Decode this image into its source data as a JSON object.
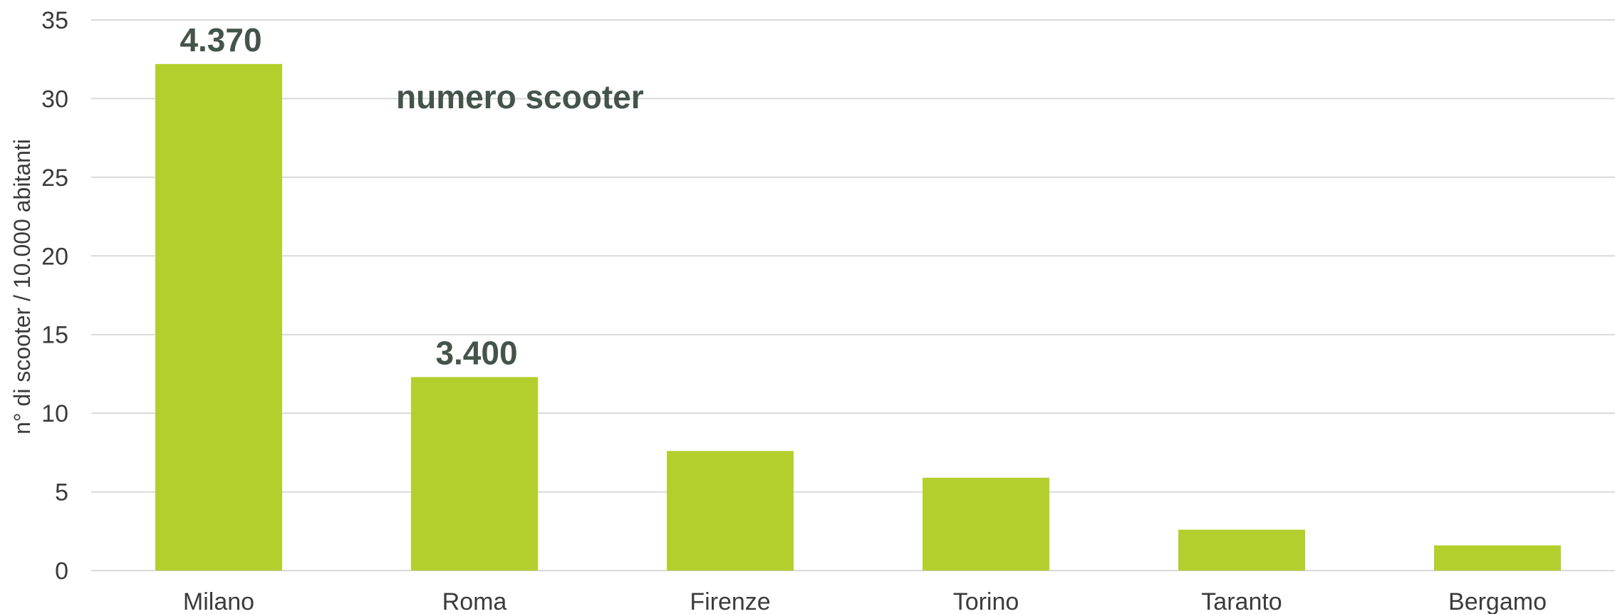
{
  "chart_data": {
    "type": "bar",
    "title": "",
    "xlabel": "",
    "ylabel": "n° di scooter / 10.000 abitanti",
    "ylim": [
      0,
      35
    ],
    "yticks": [
      0,
      5,
      10,
      15,
      20,
      25,
      30,
      35
    ],
    "grid": true,
    "categories": [
      "Milano",
      "Roma",
      "Firenze",
      "Torino",
      "Taranto",
      "Bergamo"
    ],
    "values": [
      32.2,
      12.3,
      7.6,
      5.9,
      2.6,
      1.6
    ],
    "data_labels": [
      "4.370",
      "3.400",
      "",
      "",
      "",
      ""
    ],
    "annotation": "numero scooter",
    "bar_color": "#b3cf2d",
    "text_color": "#44544a"
  }
}
